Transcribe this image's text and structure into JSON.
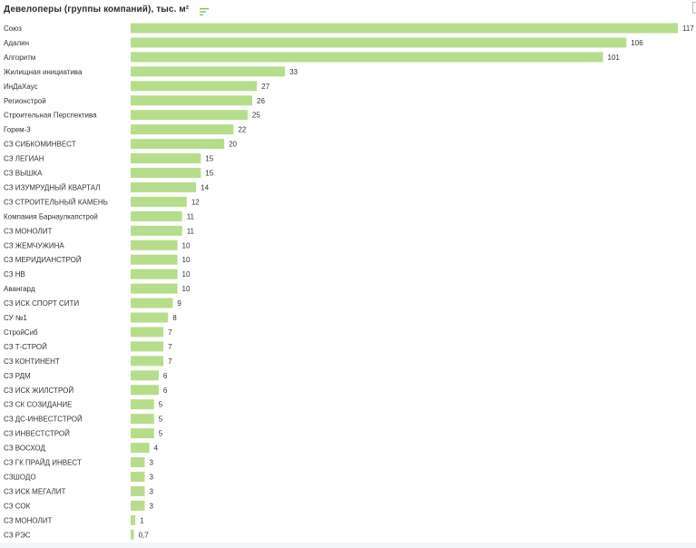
{
  "colors": {
    "bar": "#b6dd8c",
    "label": "#333333",
    "value": "#333333",
    "sort_icon": "#7dc463"
  },
  "header": {
    "title": "Девелоперы (группы компаний), тыс. м²",
    "sort_icon": "sort-lines-icon"
  },
  "chart_data": {
    "type": "bar",
    "orientation": "horizontal",
    "title": "Девелоперы (группы компаний), тыс. м²",
    "xlabel": "",
    "ylabel": "",
    "xlim": [
      0,
      117
    ],
    "grid": false,
    "legend": "none",
    "categories": [
      "Союз",
      "Адалин",
      "Алгоритм",
      "Жилищная инициатива",
      "ИнДаХаус",
      "Регионстрой",
      "Строительная Перспектива",
      "Горем-3",
      "СЗ СИБКОМИНВЕСТ",
      "СЗ ЛЕГИАН",
      "СЗ ВЫШКА",
      "СЗ ИЗУМРУДНЫЙ КВАРТАЛ",
      "СЗ СТРОИТЕЛЬНЫЙ КАМЕНЬ",
      "Компания Барнаулкапстрой",
      "СЗ МОНОЛИТ",
      "СЗ ЖЕМЧУЖИНА",
      "СЗ МЕРИДИАНСТРОЙ",
      "СЗ НВ",
      "Авангард",
      "СЗ ИСК СПОРТ СИТИ",
      "СУ №1",
      "СтройСиб",
      "СЗ Т-СТРОЙ",
      "СЗ КОНТИНЕНТ",
      "СЗ РДМ",
      "СЗ ИСК ЖИЛСТРОЙ",
      "СЗ СК СОЗИДАНИЕ",
      "СЗ ДС-ИНВЕСТСТРОЙ",
      "СЗ ИНВЕСТСТРОЙ",
      "СЗ ВОСХОД",
      "СЗ ГК ПРАЙД ИНВЕСТ",
      "СЗШОДО",
      "СЗ ИСК МЕГАЛИТ",
      "СЗ СОК",
      "СЗ МОНОЛИТ",
      "СЗ РЭС"
    ],
    "values": [
      117,
      106,
      101,
      33,
      27,
      26,
      25,
      22,
      20,
      15,
      15,
      14,
      12,
      11,
      11,
      10,
      10,
      10,
      10,
      9,
      8,
      7,
      7,
      7,
      6,
      6,
      5,
      5,
      5,
      4,
      3,
      3,
      3,
      3,
      1,
      0.7
    ],
    "value_labels": [
      "117",
      "106",
      "101",
      "33",
      "27",
      "26",
      "25",
      "22",
      "20",
      "15",
      "15",
      "14",
      "12",
      "11",
      "11",
      "10",
      "10",
      "10",
      "10",
      "9",
      "8",
      "7",
      "7",
      "7",
      "6",
      "6",
      "5",
      "5",
      "5",
      "4",
      "3",
      "3",
      "3",
      "3",
      "1",
      "0,7"
    ]
  }
}
